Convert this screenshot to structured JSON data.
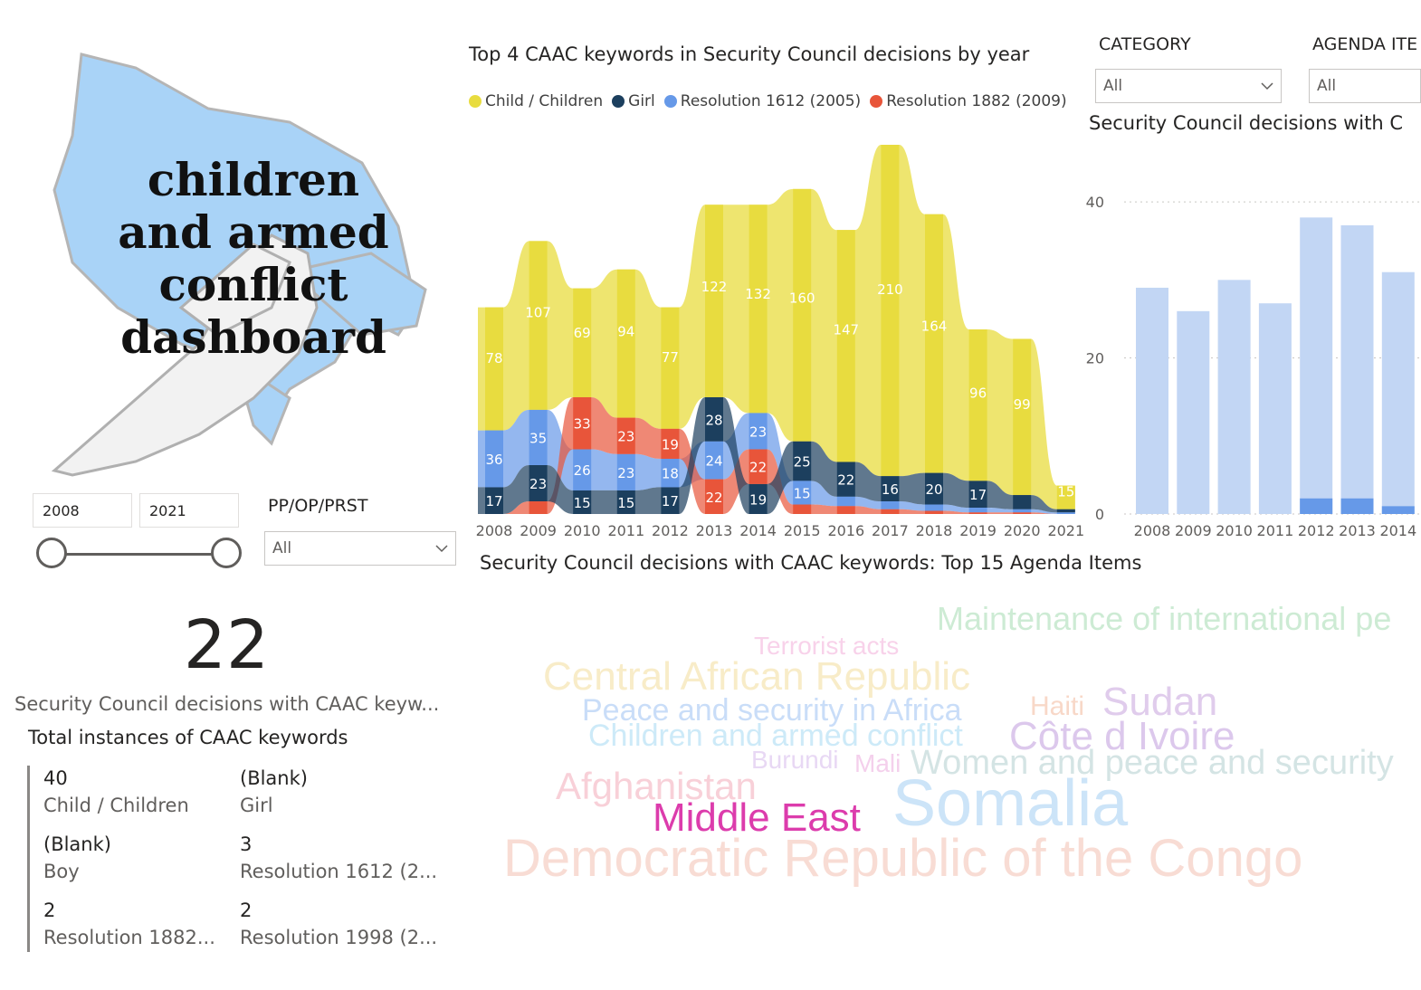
{
  "logo": {
    "lines": [
      "children",
      "and armed",
      "conflict",
      "dashboard"
    ]
  },
  "year_slicer": {
    "start": "2008",
    "end": "2021"
  },
  "pp_slicer": {
    "label": "PP/OP/PRST",
    "value": "All"
  },
  "category_slicer": {
    "label": "CATEGORY",
    "value": "All"
  },
  "agenda_slicer": {
    "label": "AGENDA ITE",
    "value": "All"
  },
  "card": {
    "value": "22",
    "label": "Security Council decisions with CAAC keyw..."
  },
  "kpis": {
    "title": "Total instances of CAAC keywords",
    "items": [
      {
        "value": "40",
        "label": "Child / Children"
      },
      {
        "value": "(Blank)",
        "label": "Girl"
      },
      {
        "value": "(Blank)",
        "label": "Boy"
      },
      {
        "value": "3",
        "label": "Resolution 1612 (2..."
      },
      {
        "value": "2",
        "label": "Resolution 1882..."
      },
      {
        "value": "2",
        "label": "Resolution 1998 (2..."
      }
    ]
  },
  "colors": {
    "child": "#E8DC3F",
    "girl": "#1C3F5E",
    "r1612": "#6699E8",
    "r1882": "#E8553A",
    "bar_light": "#C2D6F4",
    "bar_dark": "#6699E8"
  },
  "chart_data": [
    {
      "type": "area",
      "title": "Top 4 CAAC keywords in Security Council decisions by year",
      "x": [
        "2008",
        "2009",
        "2010",
        "2011",
        "2012",
        "2013",
        "2014",
        "2015",
        "2016",
        "2017",
        "2018",
        "2019",
        "2020",
        "2021"
      ],
      "series": [
        {
          "name": "Child / Children",
          "values": [
            78,
            107,
            69,
            94,
            77,
            122,
            132,
            160,
            147,
            210,
            164,
            96,
            99,
            15
          ]
        },
        {
          "name": "Girl",
          "values": [
            17,
            23,
            15,
            15,
            17,
            28,
            19,
            25,
            22,
            16,
            20,
            17,
            9,
            2
          ]
        },
        {
          "name": "Resolution 1612 (2005)",
          "values": [
            36,
            35,
            26,
            23,
            18,
            24,
            23,
            15,
            6,
            5,
            4,
            3,
            2,
            1
          ]
        },
        {
          "name": "Resolution 1882 (2009)",
          "values": [
            0,
            8,
            33,
            23,
            19,
            22,
            22,
            6,
            5,
            3,
            2,
            1,
            1,
            0
          ]
        }
      ],
      "legend": "top",
      "grid": false
    },
    {
      "type": "bar",
      "title": "Security Council decisions with C",
      "categories": [
        "2008",
        "2009",
        "2010",
        "2011",
        "2012",
        "2013",
        "2014"
      ],
      "series": [
        {
          "values": [
            29,
            26,
            30,
            27,
            36,
            35,
            30
          ]
        },
        {
          "values": [
            0,
            0,
            0,
            0,
            2,
            2,
            1
          ]
        }
      ],
      "yticks": [
        "0",
        "20",
        "40"
      ],
      "ylim": [
        0,
        45
      ],
      "grid": true
    },
    {
      "type": "wordcloud",
      "title": "Security Council decisions with CAAC keywords: Top 15 Agenda Items",
      "words": [
        {
          "text": "Maintenance of international pe",
          "color": "#CDEBD4",
          "size": 36
        },
        {
          "text": "Terrorist acts",
          "color": "#F8D2EA",
          "size": 28
        },
        {
          "text": "Central African Republic",
          "color": "#F8ECC8",
          "size": 44
        },
        {
          "text": "Peace and security in Africa",
          "color": "#C9DDF8",
          "size": 34
        },
        {
          "text": "Children and armed conflict",
          "color": "#CDEAF8",
          "size": 34
        },
        {
          "text": "Haiti",
          "color": "#F8D8C8",
          "size": 30
        },
        {
          "text": "Sudan",
          "color": "#E0CCEC",
          "size": 44
        },
        {
          "text": "Côte d Ivoire",
          "color": "#DCC8EC",
          "size": 44
        },
        {
          "text": "Burundi",
          "color": "#E8D8F4",
          "size": 28
        },
        {
          "text": "Mali",
          "color": "#F4D0EC",
          "size": 28
        },
        {
          "text": "Women and peace and security",
          "color": "#D4E4E4",
          "size": 38
        },
        {
          "text": "Afghanistan",
          "color": "#F8D0D8",
          "size": 42
        },
        {
          "text": "Middle East",
          "color": "#DC3CAC",
          "size": 44
        },
        {
          "text": "Somalia",
          "color": "#CCE4F8",
          "size": 72
        },
        {
          "text": "Democratic Republic of the Congo",
          "color": "#F8DCD4",
          "size": 58
        }
      ]
    }
  ]
}
